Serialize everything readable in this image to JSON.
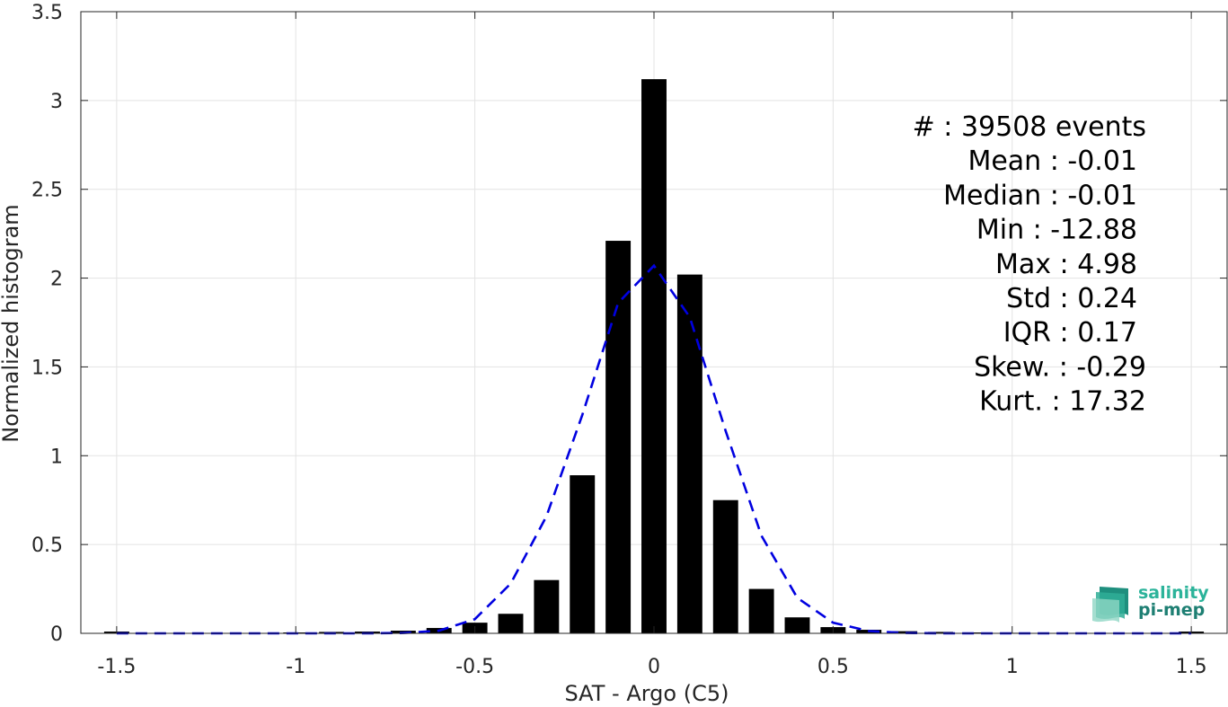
{
  "chart_data": {
    "type": "bar",
    "xlabel": "SAT - Argo (C5)",
    "ylabel": "Normalized histogram",
    "xlim": [
      -1.6,
      1.6
    ],
    "ylim": [
      0,
      3.5
    ],
    "xticks": [
      -1.5,
      -1,
      -0.5,
      0,
      0.5,
      1,
      1.5
    ],
    "xtick_labels": [
      "-1.5",
      "-1",
      "-0.5",
      "0",
      "0.5",
      "1",
      "1.5"
    ],
    "yticks": [
      0,
      0.5,
      1,
      1.5,
      2,
      2.5,
      3,
      3.5
    ],
    "ytick_labels": [
      "0",
      "0.5",
      "1",
      "1.5",
      "2",
      "2.5",
      "3",
      "3.5"
    ],
    "grid": true,
    "bar_width": 0.07,
    "bar_color": "#000000",
    "fit_color": "#0000e0",
    "bars": {
      "x": [
        -1.5,
        -1.0,
        -0.9,
        -0.8,
        -0.7,
        -0.6,
        -0.5,
        -0.4,
        -0.3,
        -0.2,
        -0.1,
        0.0,
        0.1,
        0.2,
        0.3,
        0.4,
        0.5,
        0.6,
        0.7,
        0.8,
        0.9,
        1.0,
        1.5
      ],
      "values": [
        0.01,
        0.005,
        0.008,
        0.01,
        0.015,
        0.03,
        0.06,
        0.11,
        0.3,
        0.89,
        2.21,
        3.12,
        2.02,
        0.75,
        0.25,
        0.09,
        0.035,
        0.02,
        0.012,
        0.008,
        0.005,
        0.003,
        0.01
      ]
    },
    "fit": {
      "x": [
        -1.5,
        -1.4,
        -1.3,
        -1.2,
        -1.1,
        -1.0,
        -0.9,
        -0.8,
        -0.7,
        -0.6,
        -0.5,
        -0.4,
        -0.3,
        -0.2,
        -0.1,
        0.0,
        0.1,
        0.2,
        0.3,
        0.4,
        0.5,
        0.6,
        0.7,
        0.8,
        0.9,
        1.0,
        1.1,
        1.2,
        1.3,
        1.4,
        1.5
      ],
      "values": [
        0,
        0,
        0,
        0,
        0,
        0,
        0,
        0,
        0.002,
        0.015,
        0.08,
        0.28,
        0.66,
        1.23,
        1.86,
        2.07,
        1.78,
        1.14,
        0.55,
        0.2,
        0.06,
        0.013,
        0.002,
        0,
        0,
        0,
        0,
        0,
        0,
        0,
        0
      ]
    },
    "annotations": [
      "#  : 39508 events",
      "Mean : -0.01",
      "Median : -0.01",
      "Min : -12.88",
      "Max : 4.98",
      "Std : 0.24",
      "IQR : 0.17",
      "Skew. : -0.29",
      "Kurt. : 17.32"
    ]
  },
  "logo": {
    "line1": "salinity",
    "line2": "pi-mep"
  }
}
